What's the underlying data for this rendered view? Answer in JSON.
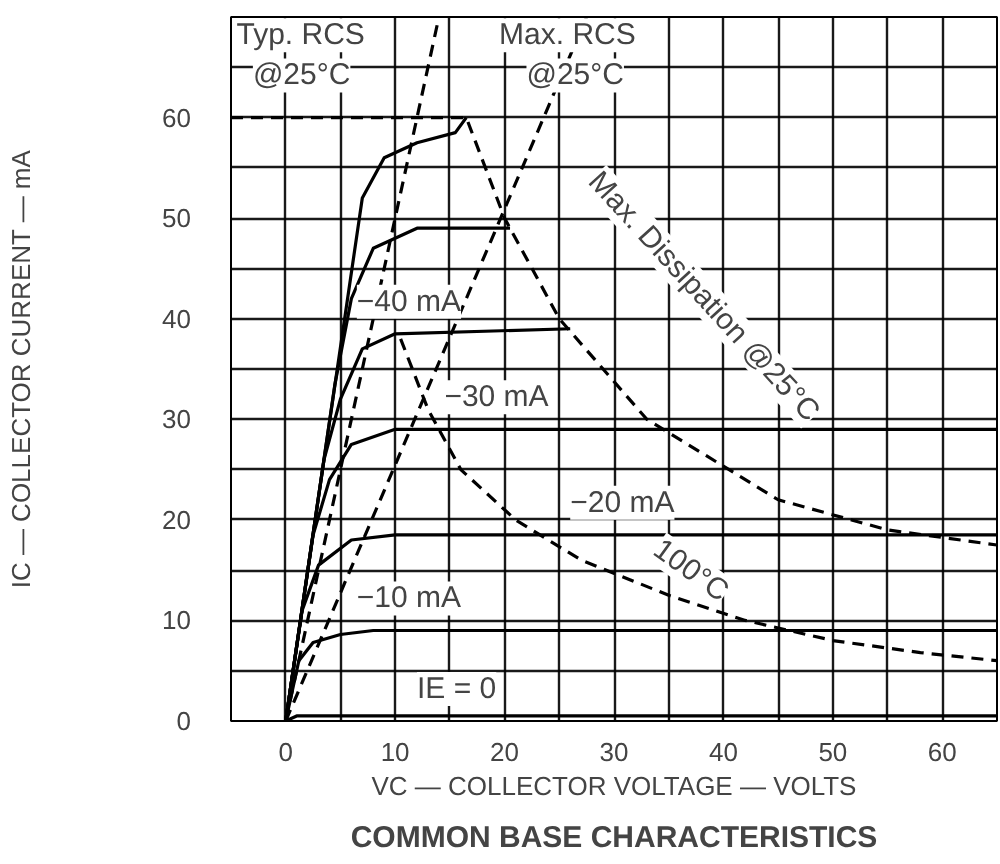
{
  "chart_data": {
    "type": "line",
    "title": "COMMON BASE CHARACTERISTICS",
    "xlabel": "VC — COLLECTOR VOLTAGE — VOLTS",
    "ylabel": "IC — COLLECTOR CURRENT — mA",
    "xlim": [
      -5,
      65
    ],
    "ylim": [
      0,
      70
    ],
    "xticks": [
      {
        "value": -5,
        "label": null
      },
      0,
      {
        "value": 5,
        "label": null
      },
      10,
      {
        "value": 15,
        "label": null
      },
      20,
      {
        "value": 25,
        "label": null
      },
      30,
      {
        "value": 35,
        "label": null
      },
      40,
      {
        "value": 45,
        "label": null
      },
      50,
      {
        "value": 55,
        "label": null
      },
      60,
      {
        "value": 65,
        "label": null
      }
    ],
    "yticks": [
      0,
      {
        "value": 5,
        "label": null
      },
      10,
      {
        "value": 15,
        "label": null
      },
      20,
      {
        "value": 25,
        "label": null
      },
      30,
      {
        "value": 35,
        "label": null
      },
      40,
      {
        "value": 45,
        "label": null
      },
      50,
      {
        "value": 55,
        "label": null
      },
      60,
      {
        "value": 65,
        "label": null
      },
      {
        "value": 70,
        "label": null
      }
    ],
    "grid": true,
    "marker": "none",
    "series": [
      {
        "color": "#000000",
        "line_style": "solid",
        "x": [
          0,
          1,
          65
        ],
        "values": [
          0,
          0.5,
          0.5
        ]
      },
      {
        "color": "#000000",
        "line_style": "solid",
        "x": [
          0,
          1.2,
          2.5,
          5,
          8,
          65
        ],
        "values": [
          0,
          6,
          7.8,
          8.6,
          9,
          9
        ]
      },
      {
        "color": "#000000",
        "line_style": "solid",
        "x": [
          0,
          1.5,
          3,
          6,
          10,
          65
        ],
        "values": [
          0,
          11,
          15.5,
          18,
          18.5,
          18.5
        ]
      },
      {
        "color": "#000000",
        "line_style": "solid",
        "x": [
          0,
          2.5,
          4,
          6,
          10,
          65
        ],
        "values": [
          0,
          18.5,
          24,
          27.5,
          29,
          29
        ]
      },
      {
        "color": "#000000",
        "line_style": "solid",
        "x": [
          0,
          3.5,
          5,
          7,
          10,
          26
        ],
        "values": [
          0,
          26,
          32,
          37,
          38.5,
          39
        ]
      },
      {
        "color": "#000000",
        "line_style": "solid",
        "x": [
          0,
          4.5,
          6,
          8,
          12,
          20.5
        ],
        "values": [
          0,
          33.5,
          42,
          47,
          49,
          49
        ]
      },
      {
        "color": "#000000",
        "line_style": "solid",
        "x": [
          0,
          7,
          9,
          12,
          15.5,
          16.5
        ],
        "values": [
          0,
          52,
          56,
          57.5,
          58.5,
          60
        ]
      },
      {
        "color": "#000000",
        "line_style": "dashed",
        "x": [
          0,
          14
        ],
        "values": [
          0,
          70
        ]
      },
      {
        "color": "#000000",
        "line_style": "dashed",
        "x": [
          0,
          27.5
        ],
        "values": [
          0,
          70
        ]
      },
      {
        "color": "#000000",
        "line_style": "dashed",
        "x": [
          -5,
          16.5,
          20,
          25,
          33,
          45,
          55,
          65
        ],
        "values": [
          60,
          60,
          50,
          40,
          30,
          22,
          19,
          17.5
        ]
      },
      {
        "color": "#000000",
        "line_style": "dashed",
        "x": [
          10.5,
          13,
          16,
          21,
          27,
          35,
          42,
          50,
          58,
          65
        ],
        "values": [
          38,
          31,
          25,
          20,
          16,
          12.5,
          10,
          8,
          6.8,
          6
        ]
      }
    ],
    "annotations": [
      "Typ. RCS",
      "@25°C",
      "Max. RCS",
      "@25°C",
      "Max. Dissipation @25°C",
      "100°C",
      "−40 mA",
      "−30 mA",
      "−20 mA",
      "−10 mA",
      "IE = 0"
    ]
  }
}
